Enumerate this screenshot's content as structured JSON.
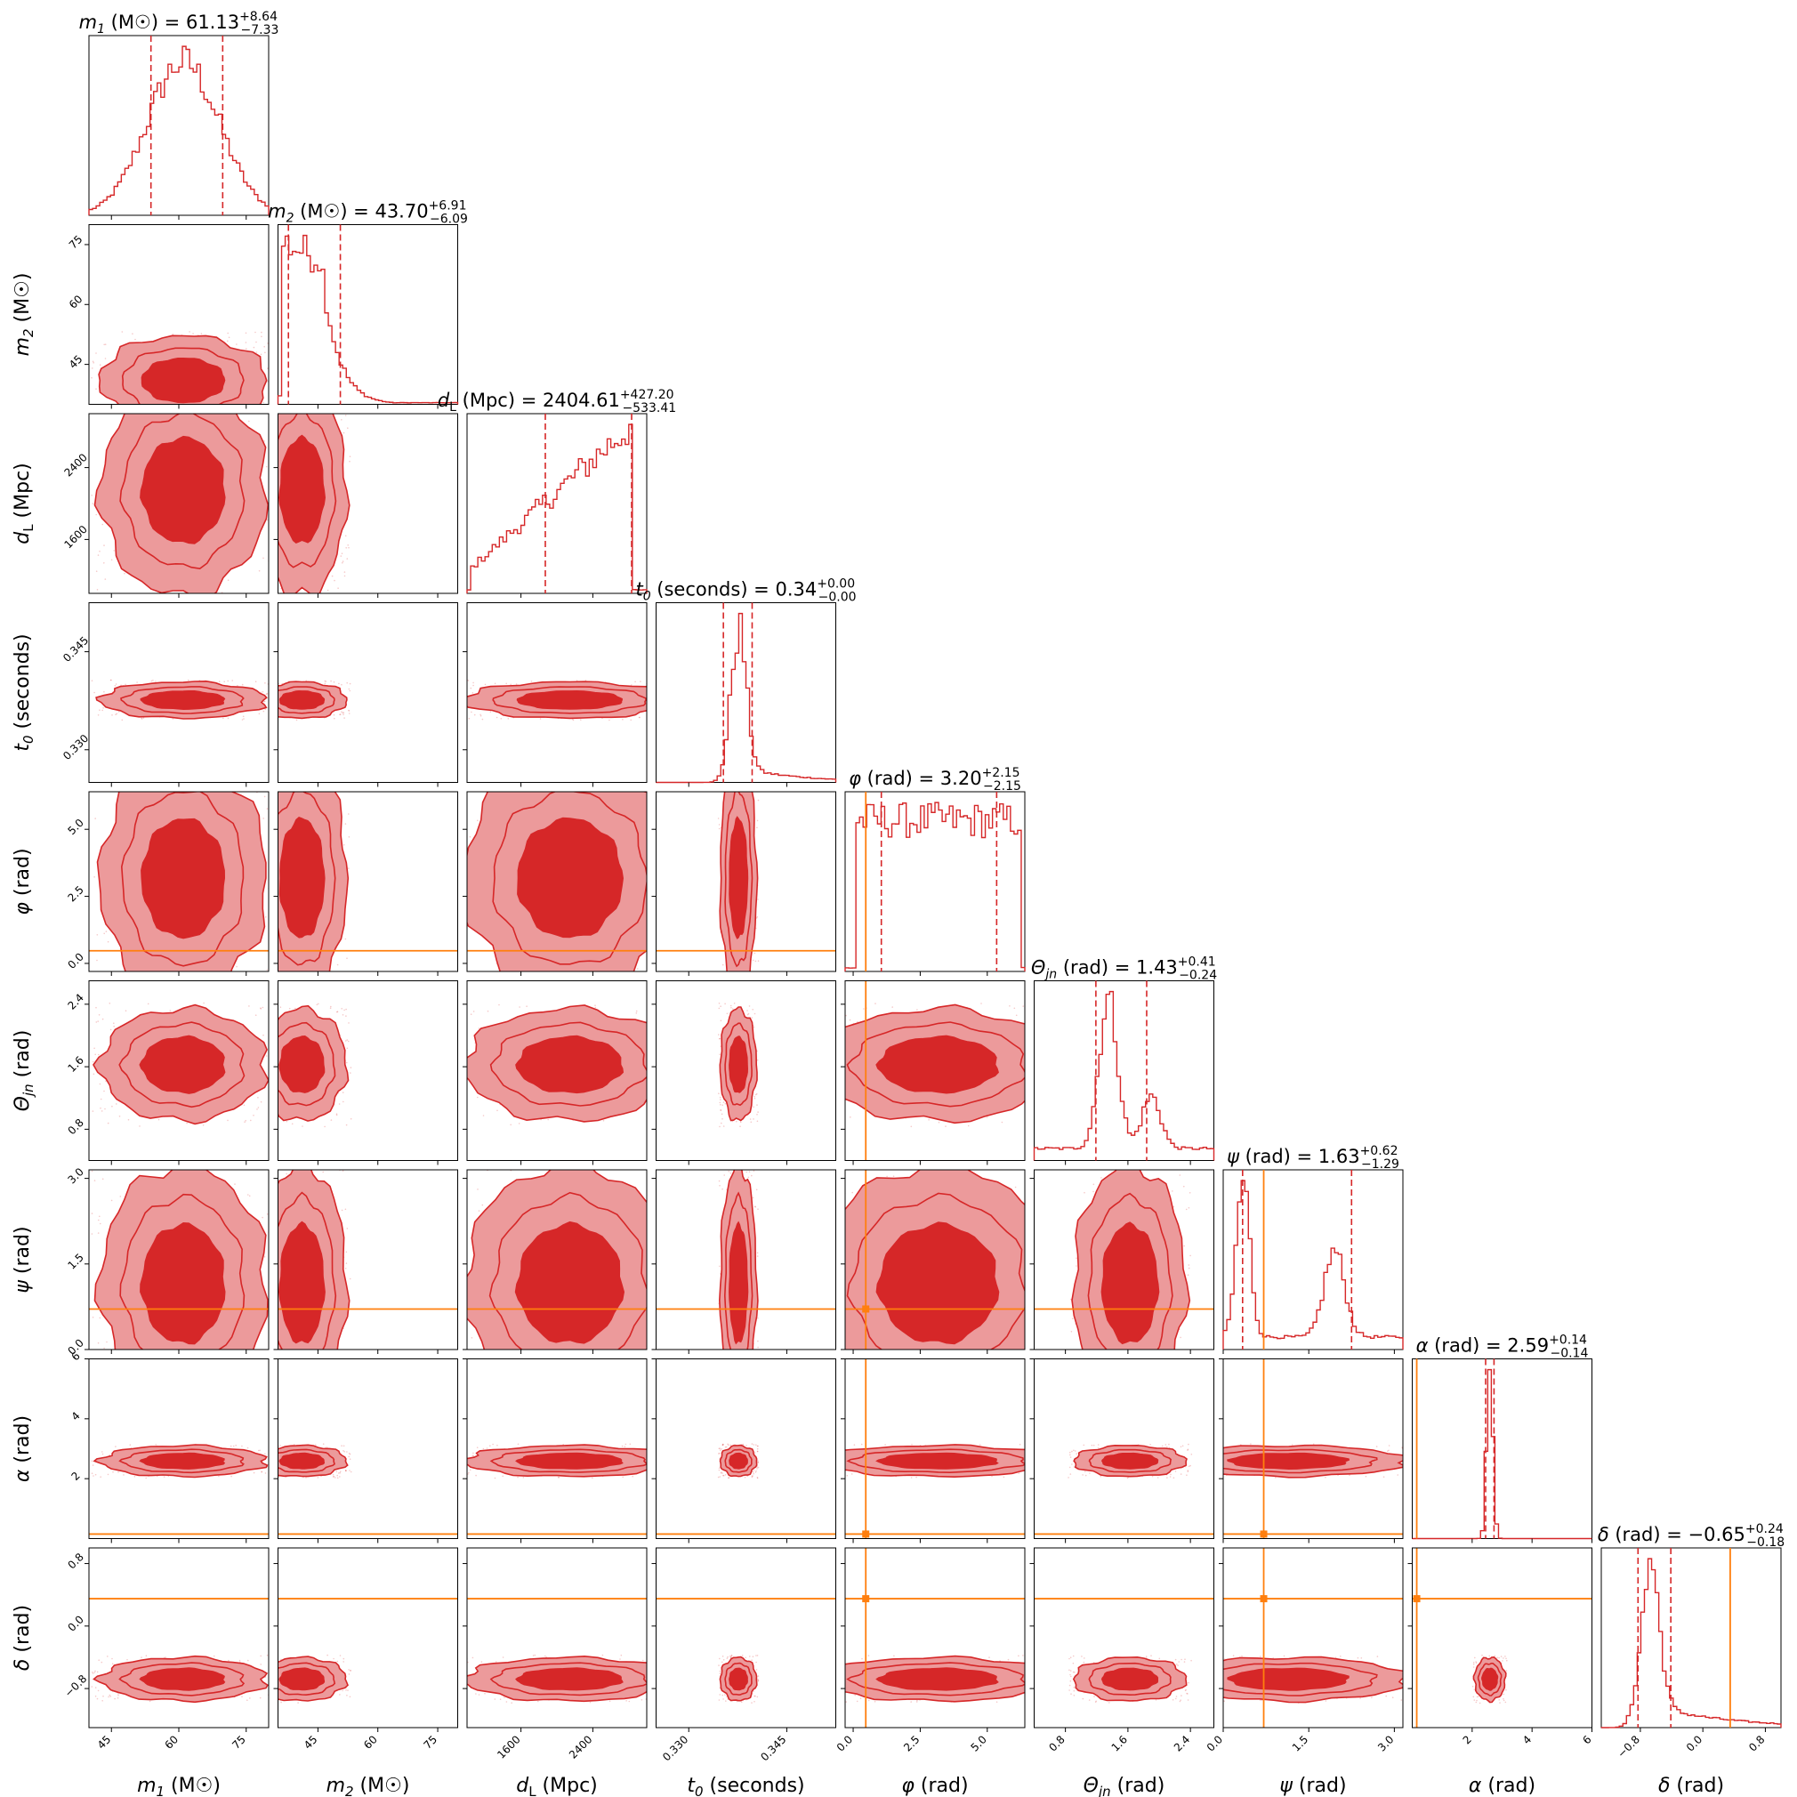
{
  "chart_data": {
    "type": "corner",
    "description_free": true,
    "colors": {
      "posterior": "#d62728",
      "posterior_light": "#ec9a9b",
      "truth": "#ff7f0e",
      "frame": "#000000"
    },
    "parameters": [
      {
        "label": "m₁ (M☉)",
        "symbol": "m",
        "sub": "1",
        "unit": "(M☉)",
        "range": [
          40,
          80
        ],
        "ticks": [
          45,
          60,
          75
        ],
        "title": {
          "prefix": "= 61.13",
          "plus": "+8.64",
          "minus": "−7.33"
        },
        "median": 61.13,
        "q16": 53.8,
        "q84": 69.77,
        "truth": null
      },
      {
        "label": "m₂ (M☉)",
        "symbol": "m",
        "sub": "2",
        "unit": "(M☉)",
        "range": [
          35,
          80
        ],
        "ticks": [
          45,
          60,
          75
        ],
        "title": {
          "prefix": "= 43.70",
          "plus": "+6.91",
          "minus": "−6.09"
        },
        "median": 43.7,
        "q16": 37.61,
        "q84": 50.61,
        "truth": null
      },
      {
        "label": "d_L (Mpc)",
        "symbol": "d",
        "sub": "L",
        "unit": "(Mpc)",
        "range": [
          1000,
          3000
        ],
        "ticks": [
          1600,
          2400
        ],
        "title": {
          "prefix": "= 2404.61",
          "plus": "+427.20",
          "minus": "−533.41"
        },
        "median": 2404.61,
        "q16": 1871.2,
        "q84": 2831.81,
        "truth": null
      },
      {
        "label": "t₀ (seconds)",
        "symbol": "t",
        "sub": "0",
        "unit": "(seconds)",
        "range": [
          0.325,
          0.3525
        ],
        "ticks": [
          0.33,
          0.345
        ],
        "title": {
          "prefix": "= 0.34",
          "plus": "+0.00",
          "minus": "−0.00"
        },
        "median": 0.3375,
        "q16": 0.3353,
        "q84": 0.3397,
        "truth": null
      },
      {
        "label": "φ (rad)",
        "symbol": "φ",
        "sub": "",
        "unit": "(rad)",
        "range": [
          -0.3,
          6.4
        ],
        "ticks": [
          0.0,
          2.5,
          5.0
        ],
        "title": {
          "prefix": "= 3.20",
          "plus": "+2.15",
          "minus": "−2.15"
        },
        "median": 3.2,
        "q16": 1.05,
        "q84": 5.35,
        "truth": 0.47
      },
      {
        "label": "Θjn (rad)",
        "symbol": "Θ",
        "sub": "jn",
        "unit": "(rad)",
        "range": [
          0.4,
          2.7
        ],
        "ticks": [
          0.8,
          1.6,
          2.4
        ],
        "title": {
          "prefix": "= 1.43",
          "plus": "+0.41",
          "minus": "−0.24"
        },
        "median": 1.43,
        "q16": 1.19,
        "q84": 1.84,
        "truth": null
      },
      {
        "label": "ψ (rad)",
        "symbol": "ψ",
        "sub": "",
        "unit": "(rad)",
        "range": [
          0.0,
          3.15
        ],
        "ticks": [
          0.0,
          1.5,
          3.0
        ],
        "title": {
          "prefix": "= 1.63",
          "plus": "+0.62",
          "minus": "−1.29"
        },
        "median": 1.63,
        "q16": 0.34,
        "q84": 2.25,
        "truth": 0.71
      },
      {
        "label": "α (rad)",
        "symbol": "α",
        "sub": "",
        "unit": "(rad)",
        "range": [
          0.0,
          6.0
        ],
        "ticks": [
          2,
          4,
          6
        ],
        "title": {
          "prefix": "= 2.59",
          "plus": "+0.14",
          "minus": "−0.14"
        },
        "median": 2.59,
        "q16": 2.45,
        "q84": 2.73,
        "truth": 0.15
      },
      {
        "label": "δ (rad)",
        "symbol": "δ",
        "sub": "",
        "unit": "(rad)",
        "range": [
          -1.3,
          1.0
        ],
        "ticks": [
          -0.8,
          0.0,
          0.8
        ],
        "title": {
          "prefix": "= −0.65",
          "plus": "+0.24",
          "minus": "−0.18"
        },
        "median": -0.65,
        "q16": -0.83,
        "q84": -0.41,
        "truth": 0.35
      }
    ],
    "tick_labels": {
      "0": [
        "45",
        "60",
        "75"
      ],
      "1": [
        "45",
        "60",
        "75"
      ],
      "2": [
        "1600",
        "2400"
      ],
      "3": [
        "0.330",
        "0.345"
      ],
      "4": [
        "0.0",
        "2.5",
        "5.0"
      ],
      "5": [
        "0.8",
        "1.6",
        "2.4"
      ],
      "6": [
        "0.0",
        "1.5",
        "3.0"
      ],
      "7": [
        "2",
        "4",
        "6"
      ],
      "8": [
        "−0.8",
        "0.0",
        "0.8"
      ]
    },
    "posterior_shapes": [
      {
        "type": "gauss",
        "mu": 61,
        "sd": 8
      },
      {
        "type": "halfflat",
        "lo": 36,
        "hi": 50,
        "tail": 4
      },
      {
        "type": "ramp",
        "lo": 1050,
        "hi": 2850
      },
      {
        "type": "gauss",
        "mu": 0.3376,
        "sd": 0.0012,
        "tail": 0.1
      },
      {
        "type": "flat",
        "lo": 0.1,
        "hi": 6.25
      },
      {
        "type": "bimodal",
        "a": 1.35,
        "sa": 0.12,
        "b": 1.9,
        "sb": 0.12,
        "w": 0.35
      },
      {
        "type": "bimodal",
        "a": 0.35,
        "sa": 0.12,
        "b": 1.95,
        "sb": 0.18,
        "w": 0.55
      },
      {
        "type": "gauss",
        "mu": 2.59,
        "sd": 0.1
      },
      {
        "type": "gauss",
        "mu": -0.68,
        "sd": 0.12,
        "tail": 0.15
      }
    ],
    "grid": false,
    "legend": "none"
  }
}
